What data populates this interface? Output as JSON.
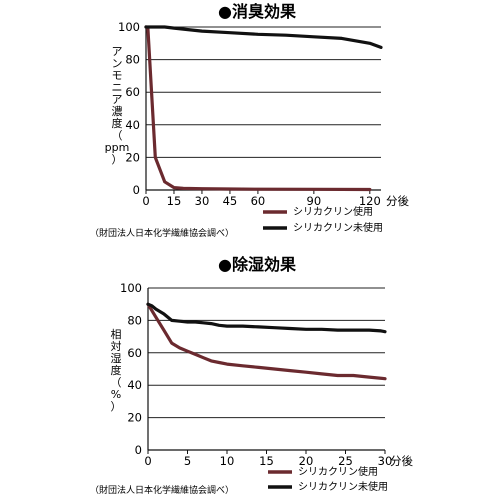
{
  "chart_data": [
    {
      "type": "line",
      "title": "●消臭効果",
      "ylabel_chars": [
        "ア",
        "ン",
        "モ",
        "ニ",
        "ア",
        "濃",
        "度",
        "（",
        "ppm",
        "）"
      ],
      "xlabel_unit": "分後",
      "x_ticks": [
        0,
        15,
        30,
        45,
        60,
        90,
        120
      ],
      "y_ticks": [
        0,
        20,
        40,
        60,
        80,
        100
      ],
      "xlim": [
        0,
        126
      ],
      "ylim": [
        0,
        100
      ],
      "grid": true,
      "legend_position": "bottom-right",
      "series": [
        {
          "name": "シリカクリン使用",
          "color": "#6b2a2f",
          "x": [
            0,
            1,
            5,
            10,
            15,
            20,
            30,
            45,
            60,
            90,
            120
          ],
          "y": [
            100,
            99,
            20,
            5,
            1.5,
            1,
            0.8,
            0.6,
            0.5,
            0.4,
            0.3
          ]
        },
        {
          "name": "シリカクリン未使用",
          "color": "#111111",
          "x": [
            0,
            10,
            15,
            30,
            45,
            60,
            75,
            90,
            105,
            120,
            126
          ],
          "y": [
            100,
            100,
            99.3,
            97.5,
            96.5,
            95.5,
            95,
            94,
            93,
            90,
            87.5
          ]
        }
      ],
      "source": "（財団法人日本化学繊維協会調べ）"
    },
    {
      "type": "line",
      "title": "●除湿効果",
      "ylabel_chars": [
        "相",
        "対",
        "湿",
        "度",
        "（",
        "%",
        "）"
      ],
      "xlabel_unit": "分後",
      "x_ticks": [
        0,
        5,
        10,
        15,
        20,
        25,
        30
      ],
      "y_ticks": [
        0,
        20,
        40,
        60,
        80,
        100
      ],
      "xlim": [
        0,
        30
      ],
      "ylim": [
        0,
        100
      ],
      "grid": true,
      "legend_position": "bottom-right",
      "series": [
        {
          "name": "シリカクリン使用",
          "color": "#6b2a2f",
          "x": [
            0,
            1,
            2,
            3,
            4,
            5,
            6,
            7,
            8,
            9,
            10,
            12,
            14,
            16,
            18,
            20,
            22,
            24,
            26,
            28,
            30
          ],
          "y": [
            90,
            82,
            74,
            66,
            63,
            61,
            59,
            57,
            55,
            54,
            53,
            52,
            51,
            50,
            49,
            48,
            47,
            46,
            46,
            45,
            44
          ]
        },
        {
          "name": "シリカクリン未使用",
          "color": "#111111",
          "x": [
            0,
            0.5,
            1,
            2,
            3,
            4,
            5,
            6,
            7,
            8,
            9,
            10,
            12,
            14,
            16,
            18,
            20,
            22,
            24,
            26,
            28,
            29.5,
            30
          ],
          "y": [
            90,
            89,
            87,
            84,
            80,
            79.5,
            79,
            79,
            78.5,
            78,
            77,
            76.5,
            76.5,
            76,
            75.5,
            75,
            74.5,
            74.5,
            74,
            74,
            74,
            73.5,
            73
          ]
        }
      ],
      "source": "（財団法人日本化学繊維協会調べ）"
    }
  ]
}
